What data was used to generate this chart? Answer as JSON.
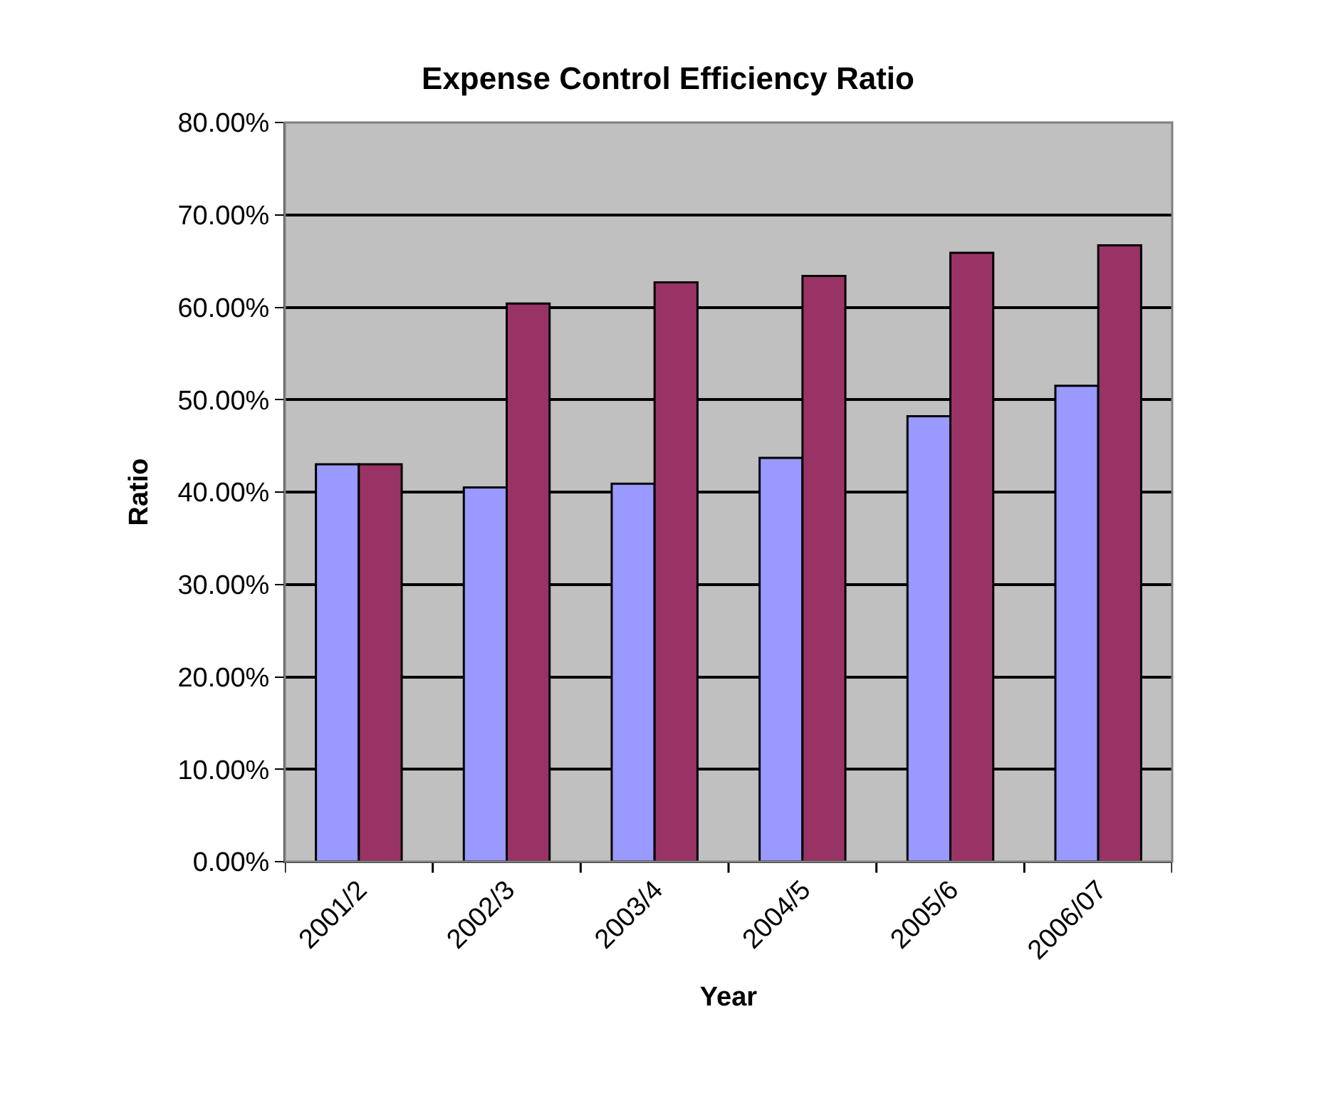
{
  "chart_data": {
    "type": "bar",
    "title": "Expense Control Efficiency Ratio",
    "xlabel": "Year",
    "ylabel": "Ratio",
    "categories": [
      "2001/2",
      "2002/3",
      "2003/4",
      "2004/5",
      "2005/6",
      "2006/07"
    ],
    "series": [
      {
        "color": "#9999ff",
        "values": [
          43.0,
          40.5,
          40.9,
          43.7,
          48.2,
          51.5
        ]
      },
      {
        "color": "#993366",
        "values": [
          43.0,
          60.4,
          62.7,
          63.4,
          65.9,
          66.7
        ]
      }
    ],
    "ylim": [
      0,
      80
    ],
    "yticks": [
      {
        "value": 0,
        "label": "0.00%"
      },
      {
        "value": 10,
        "label": "10.00%"
      },
      {
        "value": 20,
        "label": "20.00%"
      },
      {
        "value": 30,
        "label": "30.00%"
      },
      {
        "value": 40,
        "label": "40.00%"
      },
      {
        "value": 50,
        "label": "50.00%"
      },
      {
        "value": 60,
        "label": "60.00%"
      },
      {
        "value": 70,
        "label": "70.00%"
      },
      {
        "value": 80,
        "label": "80.00%"
      }
    ],
    "grid": "y"
  }
}
